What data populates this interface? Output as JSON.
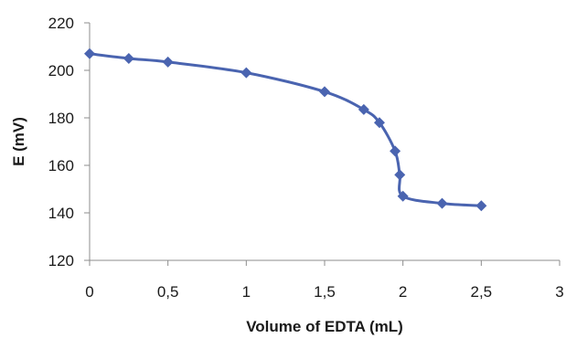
{
  "chart_data": {
    "type": "line",
    "title": "",
    "xlabel": "Volume of EDTA (mL)",
    "ylabel": "E (mV)",
    "xlim": [
      0,
      3
    ],
    "ylim": [
      120,
      220
    ],
    "x_ticks": [
      {
        "value": 0,
        "label": "0"
      },
      {
        "value": 0.5,
        "label": "0,5"
      },
      {
        "value": 1,
        "label": "1"
      },
      {
        "value": 1.5,
        "label": "1,5"
      },
      {
        "value": 2,
        "label": "2"
      },
      {
        "value": 2.5,
        "label": "2,5"
      },
      {
        "value": 3,
        "label": "3"
      }
    ],
    "y_ticks": [
      {
        "value": 120,
        "label": "120"
      },
      {
        "value": 140,
        "label": "140"
      },
      {
        "value": 160,
        "label": "160"
      },
      {
        "value": 180,
        "label": "180"
      },
      {
        "value": 200,
        "label": "200"
      },
      {
        "value": 220,
        "label": "220"
      }
    ],
    "grid": false,
    "legend": "none",
    "marker": "diamond",
    "series": [
      {
        "color": "#4a64b0",
        "x": [
          0,
          0.25,
          0.5,
          1,
          1.5,
          1.75,
          1.85,
          1.95,
          1.98,
          2.0,
          2.25,
          2.5
        ],
        "y": [
          207,
          205,
          203.5,
          199,
          191,
          183.5,
          178,
          166,
          156,
          147,
          144,
          143
        ]
      }
    ]
  }
}
